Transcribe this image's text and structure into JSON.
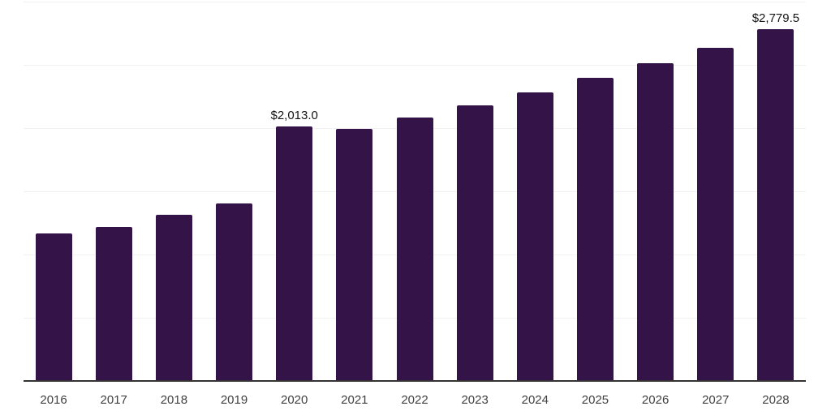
{
  "chart_data": {
    "type": "bar",
    "title": "",
    "xlabel": "",
    "ylabel": "",
    "categories": [
      "2016",
      "2017",
      "2018",
      "2019",
      "2020",
      "2021",
      "2022",
      "2023",
      "2024",
      "2025",
      "2026",
      "2027",
      "2028"
    ],
    "values": [
      1168,
      1219,
      1315,
      1406,
      2013.0,
      1992,
      2085,
      2177,
      2280,
      2395,
      2510,
      2637,
      2779.5
    ],
    "annotations": [
      {
        "category": "2020",
        "text": "$2,013.0"
      },
      {
        "category": "2028",
        "text": "$2,779.5"
      }
    ],
    "ylim": [
      0,
      3000
    ],
    "grid_interval": 500,
    "grid_visible": true,
    "legend_position": "none",
    "colors": {
      "bar": "#341349",
      "gridline": "#f1f1f4",
      "axis_line": "#333333",
      "tick_label": "#404040",
      "value_label": "#141414",
      "background": "#ffffff"
    }
  }
}
